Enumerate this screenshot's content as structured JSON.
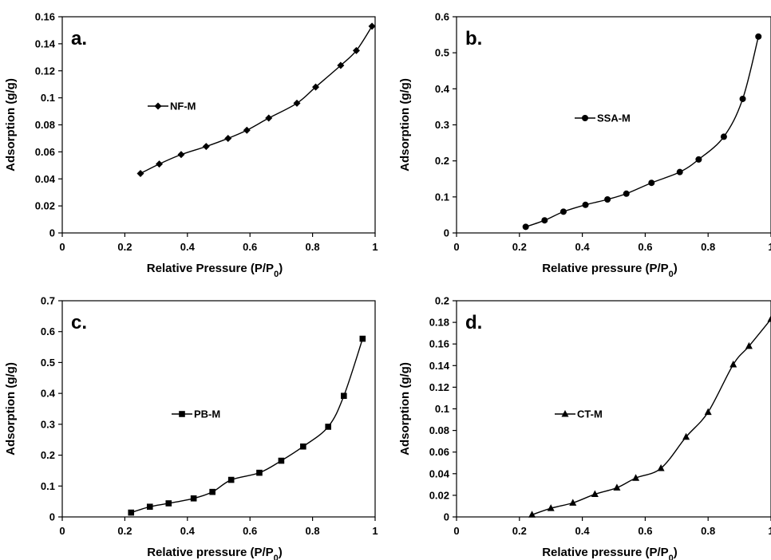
{
  "chart_data": [
    {
      "type": "line",
      "panel_label": "a.",
      "xlabel": "Relative Pressure (P/P₀)",
      "ylabel": "Adsorption (g/g)",
      "xlim": [
        0,
        1
      ],
      "ylim": [
        0,
        0.16
      ],
      "xticks": [
        "0",
        "0.2",
        "0.4",
        "0.6",
        "0.8",
        "1"
      ],
      "yticks": [
        "0",
        "0.02",
        "0.04",
        "0.06",
        "0.08",
        "0.1",
        "0.12",
        "0.14",
        "0.16"
      ],
      "legend_position": "center-left",
      "grid": false,
      "series": [
        {
          "name": "NF-M",
          "marker": "diamond",
          "color": "#000000",
          "x": [
            0.25,
            0.31,
            0.38,
            0.46,
            0.53,
            0.59,
            0.66,
            0.75,
            0.81,
            0.89,
            0.94,
            0.99
          ],
          "y": [
            0.044,
            0.051,
            0.058,
            0.064,
            0.07,
            0.076,
            0.085,
            0.096,
            0.108,
            0.124,
            0.135,
            0.153
          ]
        }
      ]
    },
    {
      "type": "line",
      "panel_label": "b.",
      "xlabel": "Relative pressure (P/P₀)",
      "ylabel": "Adsorption (g/g)",
      "xlim": [
        0,
        1
      ],
      "ylim": [
        0,
        0.6
      ],
      "xticks": [
        "0",
        "0.2",
        "0.4",
        "0.6",
        "0.8",
        "1"
      ],
      "yticks": [
        "0",
        "0.1",
        "0.2",
        "0.3",
        "0.4",
        "0.5",
        "0.6"
      ],
      "legend_position": "center-right",
      "grid": false,
      "series": [
        {
          "name": "SSA-M",
          "marker": "circle",
          "color": "#000000",
          "x": [
            0.22,
            0.28,
            0.34,
            0.41,
            0.48,
            0.54,
            0.62,
            0.71,
            0.77,
            0.85,
            0.91,
            0.96
          ],
          "y": [
            0.017,
            0.035,
            0.059,
            0.078,
            0.093,
            0.109,
            0.139,
            0.169,
            0.204,
            0.267,
            0.372,
            0.545
          ]
        }
      ]
    },
    {
      "type": "line",
      "panel_label": "c.",
      "xlabel": "Relative pressure (P/P₀)",
      "ylabel": "Adsorption (g/g)",
      "xlim": [
        0,
        1
      ],
      "ylim": [
        0,
        0.7
      ],
      "xticks": [
        "0",
        "0.2",
        "0.4",
        "0.6",
        "0.8",
        "1"
      ],
      "yticks": [
        "0",
        "0.1",
        "0.2",
        "0.3",
        "0.4",
        "0.5",
        "0.6",
        "0.7"
      ],
      "legend_position": "center",
      "grid": false,
      "series": [
        {
          "name": "PB-M",
          "marker": "square",
          "color": "#000000",
          "x": [
            0.22,
            0.28,
            0.34,
            0.42,
            0.48,
            0.54,
            0.63,
            0.7,
            0.77,
            0.85,
            0.9,
            0.96
          ],
          "y": [
            0.014,
            0.033,
            0.044,
            0.06,
            0.081,
            0.12,
            0.143,
            0.182,
            0.228,
            0.292,
            0.392,
            0.577
          ]
        }
      ]
    },
    {
      "type": "line",
      "panel_label": "d.",
      "xlabel": "Relative pressure (P/P₀)",
      "ylabel": "Adsorption (g/g)",
      "xlim": [
        0,
        1
      ],
      "ylim": [
        0,
        0.2
      ],
      "xticks": [
        "0",
        "0.2",
        "0.4",
        "0.6",
        "0.8",
        "1"
      ],
      "yticks": [
        "0",
        "0.02",
        "0.04",
        "0.06",
        "0.08",
        "0.1",
        "0.12",
        "0.14",
        "0.16",
        "0.18",
        "0.2"
      ],
      "legend_position": "center",
      "grid": false,
      "series": [
        {
          "name": "CT-M",
          "marker": "triangle",
          "color": "#000000",
          "x": [
            0.24,
            0.3,
            0.37,
            0.44,
            0.51,
            0.57,
            0.65,
            0.73,
            0.8,
            0.88,
            0.93,
            1.0
          ],
          "y": [
            0.002,
            0.008,
            0.013,
            0.021,
            0.027,
            0.036,
            0.045,
            0.074,
            0.097,
            0.141,
            0.158,
            0.183
          ]
        }
      ]
    }
  ]
}
